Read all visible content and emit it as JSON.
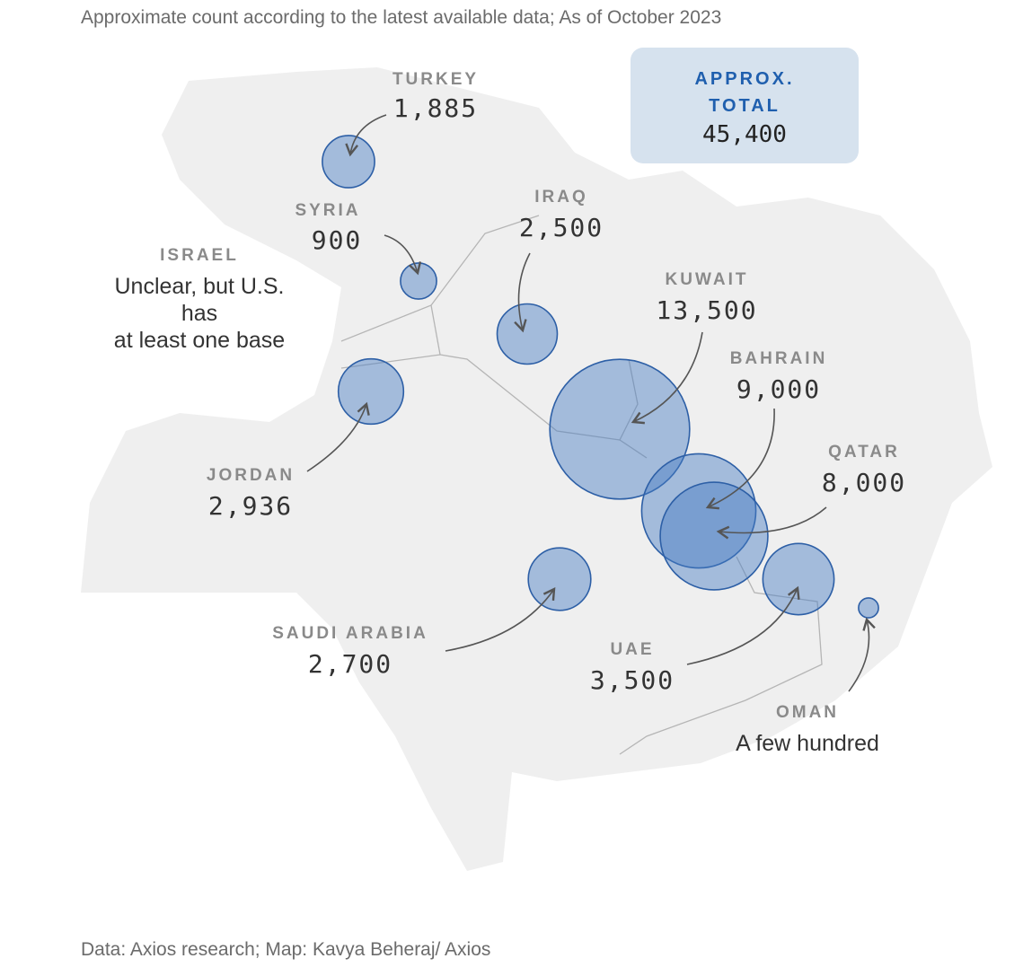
{
  "subtitle": "Approximate count according to the latest available data; As of October 2023",
  "total": {
    "line1": "APPROX.",
    "line2": "TOTAL",
    "value": "45,400"
  },
  "countries": [
    {
      "name": "TURKEY",
      "value": 1885,
      "label": "1,885"
    },
    {
      "name": "SYRIA",
      "value": 900,
      "label": "900"
    },
    {
      "name": "ISRAEL",
      "value": null,
      "label": [
        "Unclear, but U.S.",
        "has",
        "at least one base"
      ]
    },
    {
      "name": "IRAQ",
      "value": 2500,
      "label": "2,500"
    },
    {
      "name": "KUWAIT",
      "value": 13500,
      "label": "13,500"
    },
    {
      "name": "BAHRAIN",
      "value": 9000,
      "label": "9,000"
    },
    {
      "name": "QATAR",
      "value": 8000,
      "label": "8,000"
    },
    {
      "name": "JORDAN",
      "value": 2936,
      "label": "2,936"
    },
    {
      "name": "SAUDI ARABIA",
      "value": 2700,
      "label": "2,700"
    },
    {
      "name": "UAE",
      "value": 3500,
      "label": "3,500"
    },
    {
      "name": "OMAN",
      "value": 275,
      "label": "A few hundred"
    }
  ],
  "source": "Data: Axios research; Map: Kavya Beheraj/ Axios"
}
